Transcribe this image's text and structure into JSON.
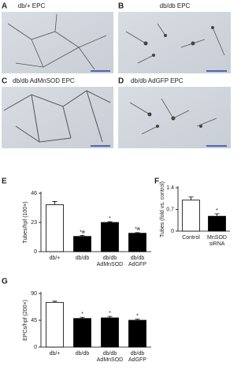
{
  "images": [
    {
      "letter": "A",
      "label": "db/+ EPC"
    },
    {
      "letter": "B",
      "label": "db/db EPC"
    },
    {
      "letter": "C",
      "label": "db/db AdMnSOD EPC"
    },
    {
      "letter": "D",
      "label": "db/db AdGFP EPC"
    }
  ],
  "chart_data": [
    {
      "type": "bar",
      "panel": "E",
      "y_label": "Tubes/hpf (100×)",
      "categories": [
        "db/+",
        "db/db",
        "db/db AdMnSOD",
        "db/db AdGFP"
      ],
      "values": [
        37,
        12,
        23,
        14.5
      ],
      "errors": [
        2.5,
        0.8,
        0.6,
        0.5
      ],
      "annotations": [
        null,
        "*#",
        "*",
        "*#"
      ],
      "colors": [
        "#ffffff",
        "#000000",
        "#000000",
        "#000000"
      ],
      "ylim": [
        0,
        46
      ],
      "yticks": [
        0,
        23,
        46
      ]
    },
    {
      "type": "bar",
      "panel": "F",
      "y_label": "Tubes (fold vs. control)",
      "categories": [
        "Control",
        "MnSOD siRNA"
      ],
      "values": [
        1.0,
        0.48
      ],
      "errors": [
        0.1,
        0.08
      ],
      "annotations": [
        null,
        "*"
      ],
      "colors": [
        "#ffffff",
        "#000000"
      ],
      "ylim": [
        0,
        1.4
      ],
      "yticks": [
        0,
        0.7,
        1.4
      ]
    },
    {
      "type": "bar",
      "panel": "G",
      "y_label": "EPCs/hpf (200×)",
      "categories": [
        "db/+",
        "db/db",
        "db/db AdMnSOD",
        "db/db AdGFP"
      ],
      "values": [
        75,
        48,
        49,
        45
      ],
      "errors": [
        2,
        2,
        2.5,
        2
      ],
      "annotations": [
        null,
        "*",
        "*",
        "*"
      ],
      "colors": [
        "#ffffff",
        "#000000",
        "#000000",
        "#000000"
      ],
      "ylim": [
        0,
        90
      ],
      "yticks": [
        0,
        45,
        90
      ]
    }
  ]
}
